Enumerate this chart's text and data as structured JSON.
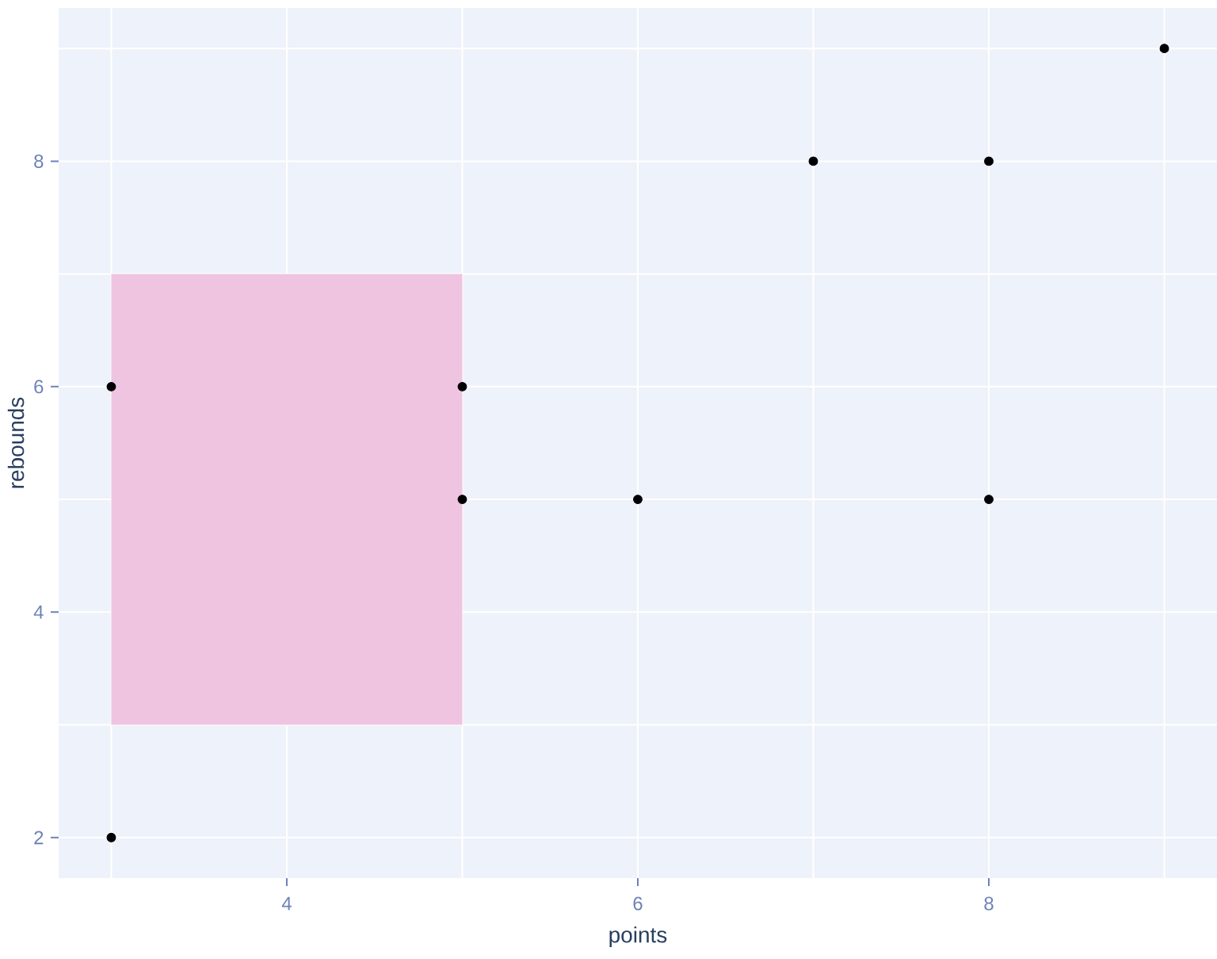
{
  "chart_data": {
    "type": "scatter",
    "xlabel": "points",
    "ylabel": "rebounds",
    "xlim": [
      2.7,
      9.3
    ],
    "ylim": [
      1.64,
      9.36
    ],
    "xticks": [
      {
        "value": 3,
        "label": null
      },
      4,
      {
        "value": 5,
        "label": null
      },
      6,
      {
        "value": 7,
        "label": null
      },
      8,
      {
        "value": 9,
        "label": null
      }
    ],
    "yticks": [
      2,
      {
        "value": 3,
        "label": null
      },
      4,
      {
        "value": 5,
        "label": null
      },
      6,
      {
        "value": 7,
        "label": null
      },
      8,
      {
        "value": 9,
        "label": null
      }
    ],
    "grid": true,
    "series": [
      {
        "type": "line",
        "color": "#efc4e0",
        "x": [
          3,
          5
        ],
        "values": [
          null,
          null
        ],
        "lower": [
          3,
          3
        ],
        "upper": [
          7,
          7
        ]
      },
      {
        "color": "#000000",
        "marker": "circle",
        "x": [
          3,
          3,
          5,
          5,
          6,
          7,
          8,
          8,
          9
        ],
        "values": [
          6,
          2,
          6,
          5,
          5,
          8,
          8,
          5,
          9
        ]
      }
    ]
  }
}
